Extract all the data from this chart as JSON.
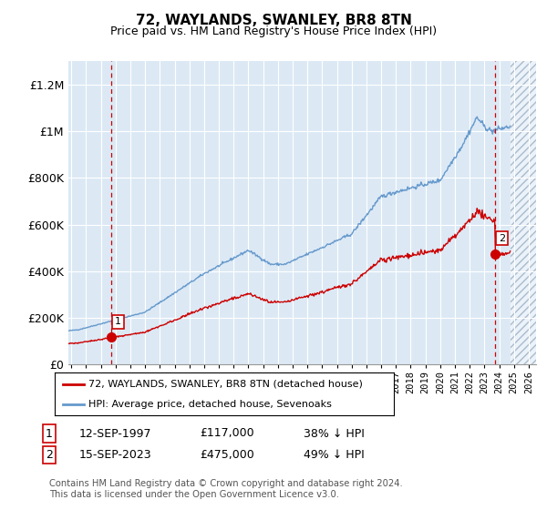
{
  "title": "72, WAYLANDS, SWANLEY, BR8 8TN",
  "subtitle": "Price paid vs. HM Land Registry's House Price Index (HPI)",
  "hpi_color": "#6699cc",
  "price_color": "#cc0000",
  "dashed_line_color": "#cc0000",
  "bg_color": "#dce9f5",
  "sale1_date": "12-SEP-1997",
  "sale1_price": 117000,
  "sale1_label": "38% ↓ HPI",
  "sale2_date": "15-SEP-2023",
  "sale2_price": 475000,
  "sale2_label": "49% ↓ HPI",
  "legend_line1": "72, WAYLANDS, SWANLEY, BR8 8TN (detached house)",
  "legend_line2": "HPI: Average price, detached house, Sevenoaks",
  "footer": "Contains HM Land Registry data © Crown copyright and database right 2024.\nThis data is licensed under the Open Government Licence v3.0.",
  "ylim": [
    0,
    1300000
  ],
  "xlim_start": 1994.8,
  "xlim_end": 2026.5,
  "future_shade_start": 2024.75,
  "sale1_x": 1997.71,
  "sale2_x": 2023.71
}
